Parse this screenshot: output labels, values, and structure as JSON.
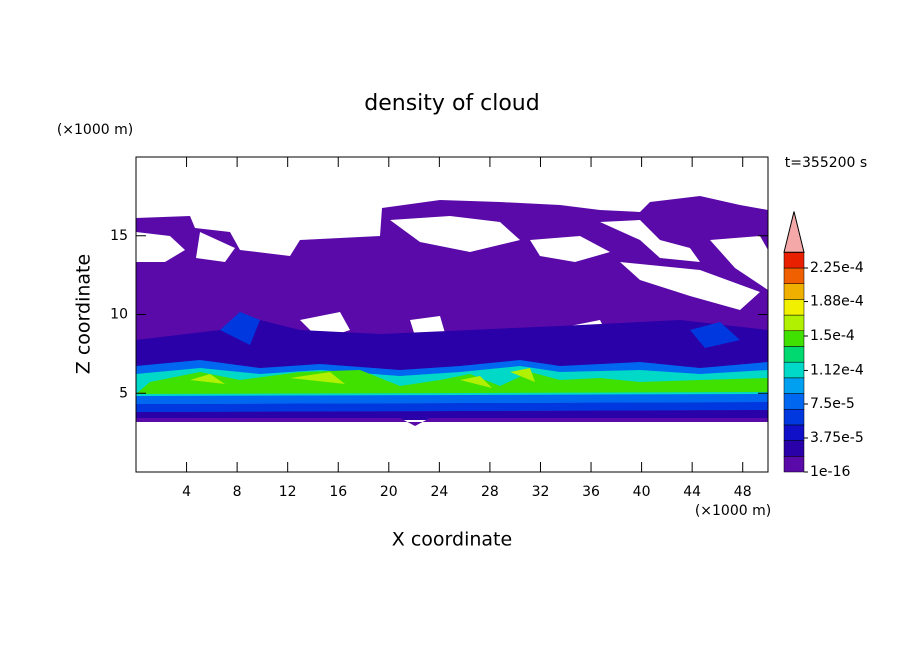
{
  "chart_data": {
    "type": "contour",
    "title": "density of cloud",
    "subtitle": "t=355200 s",
    "x_label": "X coordinate",
    "y_label": "Z coordinate",
    "x_unit": "(×1000 m)",
    "y_unit": "(×1000 m)",
    "xlim": [
      0,
      50
    ],
    "ylim": [
      0,
      20
    ],
    "xticks": [
      4,
      8,
      12,
      16,
      20,
      24,
      28,
      32,
      36,
      40,
      44,
      48
    ],
    "yticks": [
      5,
      10,
      15
    ],
    "colorbar": {
      "ticks": [
        {
          "value": 1e-16,
          "label": "1e-16"
        },
        {
          "value": 3.75e-05,
          "label": "3.75e-5"
        },
        {
          "value": 7.5e-05,
          "label": "7.5e-5"
        },
        {
          "value": 0.000112,
          "label": "1.12e-4"
        },
        {
          "value": 0.00015,
          "label": "1.5e-4"
        },
        {
          "value": 0.000188,
          "label": "1.88e-4"
        },
        {
          "value": 0.000225,
          "label": "2.25e-4"
        }
      ],
      "colors": [
        "#5a0aa8",
        "#2a00a8",
        "#1010c8",
        "#0038e0",
        "#0068f0",
        "#00a0f0",
        "#00d8c8",
        "#00d870",
        "#40e000",
        "#b0f000",
        "#f0f000",
        "#f0b000",
        "#f06000",
        "#e82000",
        "#f4a8a8"
      ]
    }
  }
}
